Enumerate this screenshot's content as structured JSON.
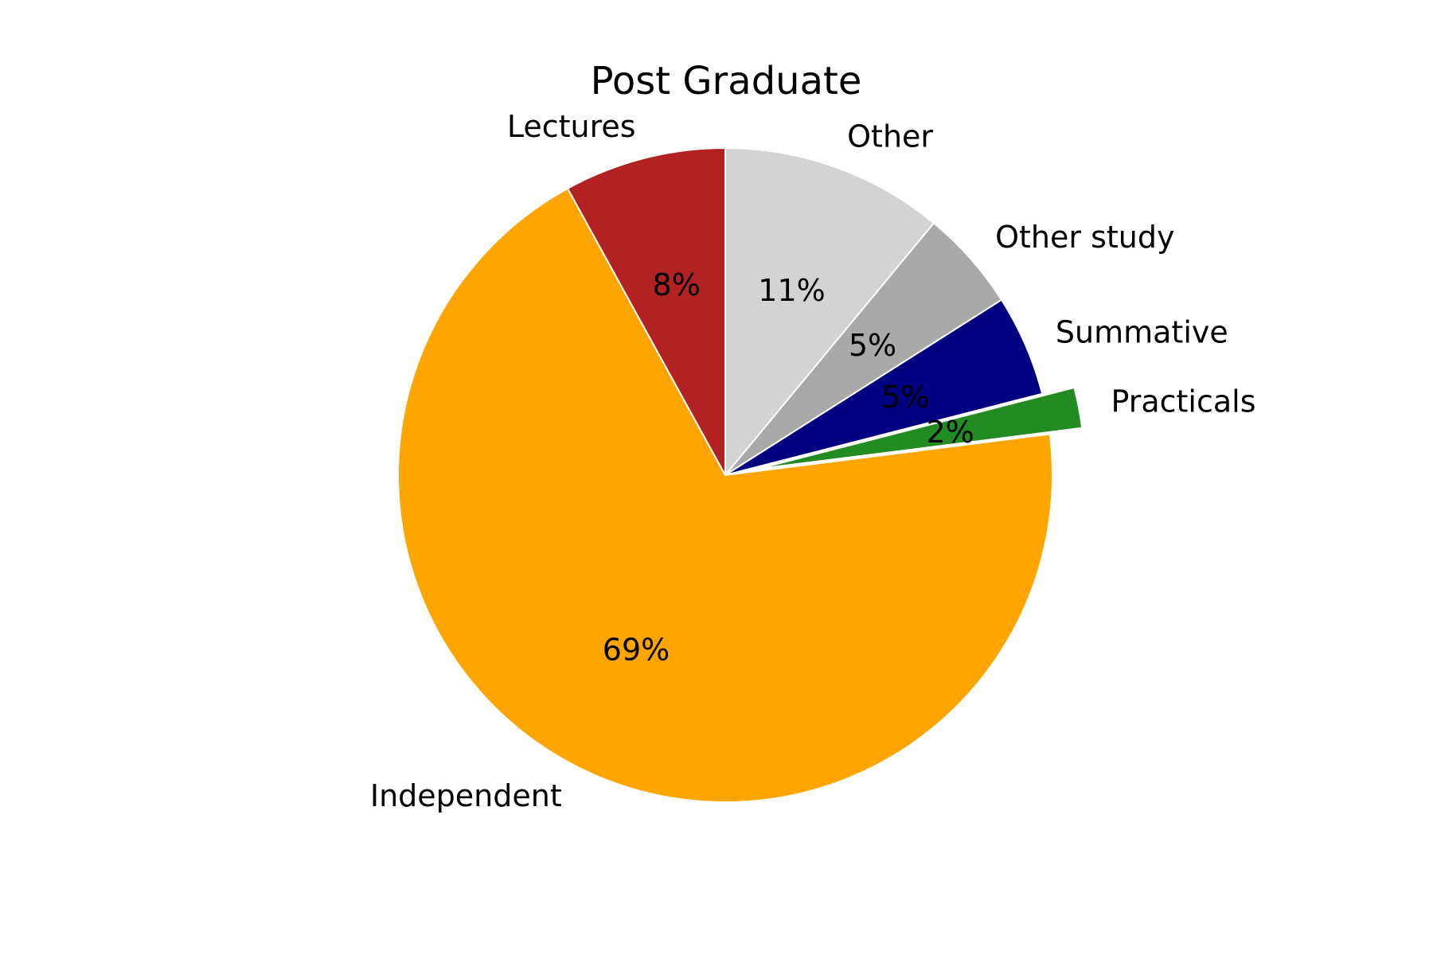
{
  "chart_data": {
    "type": "pie",
    "title": "Post Graduate",
    "start_angle_deg": 90,
    "direction": "clockwise",
    "exploded_slice": "Practicals",
    "slices": [
      {
        "label": "Other",
        "value": 11,
        "pct_label": "11%",
        "color": "#d3d3d3"
      },
      {
        "label": "Other study",
        "value": 5,
        "pct_label": "5%",
        "color": "#a9a9a9"
      },
      {
        "label": "Summative",
        "value": 5,
        "pct_label": "5%",
        "color": "#000080"
      },
      {
        "label": "Practicals",
        "value": 2,
        "pct_label": "2%",
        "color": "#228b22"
      },
      {
        "label": "Independent",
        "value": 69,
        "pct_label": "69%",
        "color": "#ffa500"
      },
      {
        "label": "Lectures",
        "value": 8,
        "pct_label": "8%",
        "color": "#b22222"
      }
    ]
  }
}
